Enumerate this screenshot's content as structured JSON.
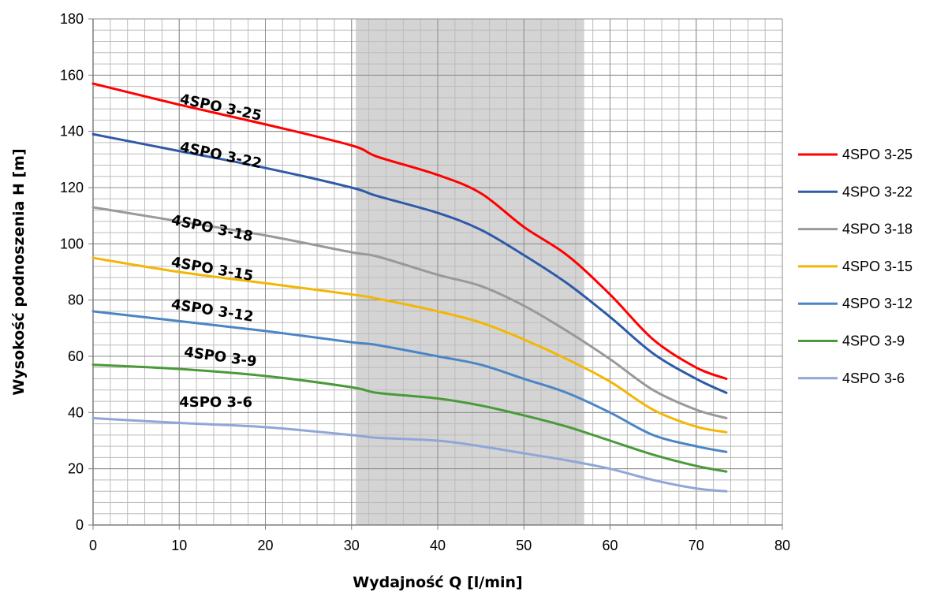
{
  "chart_data": {
    "type": "line",
    "xlabel": "Wydajność Q [l/min]",
    "ylabel": "Wysokość podnoszenia H [m]",
    "xlim": [
      0,
      80
    ],
    "ylim": [
      0,
      180
    ],
    "x_ticks": [
      "0",
      "10",
      "20",
      "30",
      "40",
      "50",
      "60",
      "70",
      "80"
    ],
    "y_ticks": [
      "0",
      "20",
      "40",
      "60",
      "80",
      "100",
      "120",
      "140",
      "160",
      "180"
    ],
    "grid": true,
    "legend_position": "right",
    "shaded_region": {
      "x_from": 30.5,
      "x_to": 57,
      "color": "#d4d4d4"
    },
    "series": [
      {
        "name": "4SPO 3-25",
        "color": "#ff0000",
        "curve_label": "4SPO 3-25",
        "label_anchor": [
          10,
          150
        ],
        "label_angle": 12,
        "x": [
          0,
          10,
          20,
          30,
          33,
          40,
          45,
          50,
          55,
          60,
          65,
          70,
          73.5
        ],
        "y": [
          157,
          149.5,
          142.5,
          135,
          131,
          124.5,
          118,
          106,
          96,
          82,
          66,
          56,
          52
        ]
      },
      {
        "name": "4SPO 3-22",
        "color": "#2e5aa8",
        "curve_label": "4SPO 3-22",
        "label_anchor": [
          10,
          133
        ],
        "label_angle": 12,
        "x": [
          0,
          10,
          20,
          30,
          33,
          40,
          45,
          50,
          55,
          60,
          65,
          70,
          73.5
        ],
        "y": [
          139,
          133,
          127,
          120,
          117,
          111,
          105,
          96,
          86,
          74,
          61,
          52,
          47
        ]
      },
      {
        "name": "4SPO 3-18",
        "color": "#999999",
        "curve_label": "4SPO 3-18",
        "label_anchor": [
          9,
          107
        ],
        "label_angle": 12,
        "x": [
          0,
          10,
          20,
          30,
          33,
          40,
          45,
          50,
          55,
          60,
          65,
          70,
          73.5
        ],
        "y": [
          113,
          108,
          103,
          97,
          95.5,
          89,
          85,
          78,
          69,
          59,
          48,
          41,
          38
        ]
      },
      {
        "name": "4SPO 3-15",
        "color": "#f2b705",
        "curve_label": "4SPO 3-15",
        "label_anchor": [
          9,
          92
        ],
        "label_angle": 10,
        "x": [
          0,
          10,
          20,
          30,
          33,
          40,
          45,
          50,
          55,
          60,
          65,
          70,
          73.5
        ],
        "y": [
          95,
          90,
          86,
          82,
          80.5,
          76,
          72,
          66,
          59,
          51,
          41,
          35,
          33
        ]
      },
      {
        "name": "4SPO 3-12",
        "color": "#4a86c5",
        "curve_label": "4SPO 3-12",
        "label_anchor": [
          9,
          77
        ],
        "label_angle": 9,
        "x": [
          0,
          10,
          20,
          30,
          33,
          40,
          45,
          50,
          55,
          60,
          65,
          70,
          73.5
        ],
        "y": [
          76,
          72.5,
          69,
          65,
          64,
          60,
          57,
          52,
          47,
          40,
          32,
          28,
          26
        ]
      },
      {
        "name": "4SPO 3-9",
        "color": "#4a9a3a",
        "curve_label": "4SPO 3-9",
        "label_anchor": [
          10.5,
          60
        ],
        "label_angle": 8,
        "x": [
          0,
          10,
          20,
          30,
          33,
          40,
          45,
          50,
          55,
          60,
          65,
          70,
          73.5
        ],
        "y": [
          57,
          55.5,
          53,
          49,
          47,
          45,
          42.5,
          39,
          35,
          30,
          25,
          21,
          19
        ]
      },
      {
        "name": "4SPO 3-6",
        "color": "#8fa6d8",
        "curve_label": "4SPO 3-6",
        "label_anchor": [
          10,
          42
        ],
        "label_angle": 0,
        "x": [
          0,
          10,
          20,
          30,
          33,
          40,
          45,
          50,
          55,
          60,
          65,
          70,
          73.5
        ],
        "y": [
          38,
          36.3,
          34.8,
          32,
          31,
          30,
          28,
          25.5,
          23,
          20,
          16,
          13,
          12
        ]
      }
    ]
  }
}
